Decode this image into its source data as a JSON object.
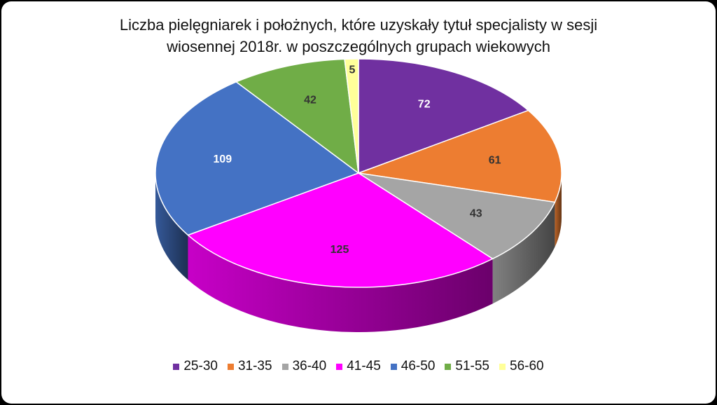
{
  "chart_data": {
    "type": "pie",
    "title_lines": [
      "Liczba pielęgniarek i położnych, które uzyskały tytuł specjalisty w sesji",
      "wiosennej 2018r. w poszczególnych  grupach wiekowych"
    ],
    "categories": [
      "25-30",
      "31-35",
      "36-40",
      "41-45",
      "46-50",
      "51-55",
      "56-60"
    ],
    "values": [
      72,
      61,
      43,
      125,
      109,
      42,
      5
    ],
    "colors": [
      "#7030A0",
      "#ED7D31",
      "#A5A5A5",
      "#FF00FF",
      "#4472C4",
      "#70AD47",
      "#FFFF99"
    ],
    "label_colors": [
      "#ffffff",
      "#333333",
      "#333333",
      "#333333",
      "#ffffff",
      "#333333",
      "#333333"
    ],
    "legend_position": "bottom",
    "style": "3d"
  }
}
